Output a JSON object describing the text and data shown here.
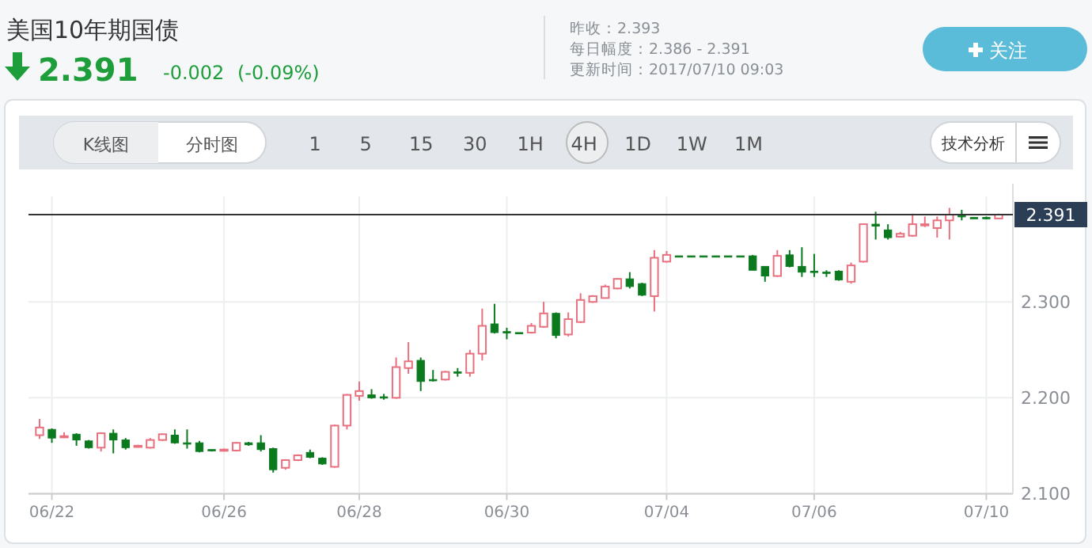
{
  "chart_data": {
    "type": "candlestick",
    "title": "美国10年期国债",
    "annotations": [
      "2.391",
      "-0.002",
      "(-0.09%)",
      "昨收：2.393",
      "每日幅度：2.386 - 2.391",
      "更新时间：2017/07/10 09:03",
      "关注",
      "K线图",
      "分时图",
      "1 5 15 30 1H 4H 1D 1W 1M",
      "技术分析"
    ],
    "categories": [
      null,
      "06/22",
      null,
      null,
      null,
      null,
      null,
      null,
      null,
      null,
      null,
      null,
      null,
      null,
      null,
      "06/26",
      null,
      null,
      null,
      null,
      null,
      null,
      null,
      null,
      null,
      null,
      "06/28",
      null,
      null,
      null,
      null,
      null,
      null,
      null,
      null,
      null,
      null,
      null,
      "06/30",
      null,
      null,
      null,
      null,
      null,
      null,
      null,
      null,
      null,
      null,
      null,
      null,
      "07/04",
      null,
      null,
      null,
      null,
      null,
      null,
      null,
      null,
      null,
      null,
      null,
      "07/06",
      null,
      null,
      null,
      null,
      null,
      null,
      null,
      null,
      null,
      null,
      null,
      null,
      null,
      "07/10",
      null
    ],
    "ohlc": [
      [
        2.161,
        2.178,
        2.157,
        2.169
      ],
      [
        2.167,
        2.168,
        2.153,
        2.158
      ],
      [
        2.159,
        2.164,
        2.158,
        2.16
      ],
      [
        2.162,
        2.163,
        2.15,
        2.156
      ],
      [
        2.155,
        2.156,
        2.147,
        2.148
      ],
      [
        2.148,
        2.164,
        2.144,
        2.163
      ],
      [
        2.163,
        2.167,
        2.142,
        2.156
      ],
      [
        2.156,
        2.158,
        2.146,
        2.148
      ],
      [
        2.149,
        2.151,
        2.148,
        2.15
      ],
      [
        2.148,
        2.158,
        2.147,
        2.156
      ],
      [
        2.156,
        2.163,
        2.155,
        2.162
      ],
      [
        2.161,
        2.167,
        2.152,
        2.153
      ],
      [
        2.153,
        2.167,
        2.147,
        2.152
      ],
      [
        2.153,
        2.155,
        2.143,
        2.144
      ],
      [
        2.146,
        2.146,
        2.144,
        2.145
      ],
      [
        2.145,
        2.147,
        2.144,
        2.146
      ],
      [
        2.145,
        2.154,
        2.144,
        2.153
      ],
      [
        2.153,
        2.154,
        2.15,
        2.151
      ],
      [
        2.153,
        2.161,
        2.144,
        2.146
      ],
      [
        2.147,
        2.148,
        2.122,
        2.125
      ],
      [
        2.127,
        2.136,
        2.125,
        2.135
      ],
      [
        2.135,
        2.141,
        2.134,
        2.14
      ],
      [
        2.143,
        2.146,
        2.137,
        2.138
      ],
      [
        2.137,
        2.138,
        2.13,
        2.131
      ],
      [
        2.128,
        2.172,
        2.127,
        2.171
      ],
      [
        2.171,
        2.204,
        2.167,
        2.203
      ],
      [
        2.202,
        2.217,
        2.197,
        2.207
      ],
      [
        2.203,
        2.209,
        2.199,
        2.2
      ],
      [
        2.201,
        2.204,
        2.198,
        2.2
      ],
      [
        2.2,
        2.242,
        2.199,
        2.232
      ],
      [
        2.231,
        2.258,
        2.225,
        2.238
      ],
      [
        2.239,
        2.242,
        2.207,
        2.217
      ],
      [
        2.219,
        2.229,
        2.217,
        2.218
      ],
      [
        2.219,
        2.228,
        2.218,
        2.227
      ],
      [
        2.227,
        2.231,
        2.222,
        2.226
      ],
      [
        2.226,
        2.25,
        2.222,
        2.246
      ],
      [
        2.246,
        2.293,
        2.239,
        2.275
      ],
      [
        2.277,
        2.298,
        2.267,
        2.268
      ],
      [
        2.269,
        2.273,
        2.261,
        2.268
      ],
      [
        2.268,
        2.268,
        2.267,
        2.267
      ],
      [
        2.268,
        2.278,
        2.267,
        2.275
      ],
      [
        2.274,
        2.3,
        2.273,
        2.288
      ],
      [
        2.288,
        2.289,
        2.262,
        2.265
      ],
      [
        2.266,
        2.289,
        2.264,
        2.282
      ],
      [
        2.279,
        2.309,
        2.278,
        2.302
      ],
      [
        2.3,
        2.307,
        2.299,
        2.306
      ],
      [
        2.304,
        2.318,
        2.304,
        2.316
      ],
      [
        2.314,
        2.325,
        2.313,
        2.324
      ],
      [
        2.324,
        2.331,
        2.314,
        2.316
      ],
      [
        2.319,
        2.32,
        2.306,
        2.307
      ],
      [
        2.306,
        2.354,
        2.29,
        2.346
      ],
      [
        2.342,
        2.353,
        2.341,
        2.349
      ],
      [
        2.348,
        2.348,
        2.348,
        2.348
      ],
      [
        2.348,
        2.348,
        2.348,
        2.348
      ],
      [
        2.348,
        2.348,
        2.348,
        2.348
      ],
      [
        2.348,
        2.348,
        2.348,
        2.348
      ],
      [
        2.348,
        2.348,
        2.348,
        2.348
      ],
      [
        2.348,
        2.348,
        2.348,
        2.348
      ],
      [
        2.348,
        2.349,
        2.333,
        2.333
      ],
      [
        2.337,
        2.337,
        2.321,
        2.327
      ],
      [
        2.327,
        2.354,
        2.326,
        2.348
      ],
      [
        2.349,
        2.354,
        2.336,
        2.337
      ],
      [
        2.337,
        2.357,
        2.326,
        2.331
      ],
      [
        2.332,
        2.35,
        2.326,
        2.331
      ],
      [
        2.331,
        2.333,
        2.326,
        2.33
      ],
      [
        2.332,
        2.333,
        2.322,
        2.323
      ],
      [
        2.321,
        2.341,
        2.319,
        2.338
      ],
      [
        2.342,
        2.381,
        2.341,
        2.381
      ],
      [
        2.381,
        2.394,
        2.365,
        2.379
      ],
      [
        2.375,
        2.381,
        2.365,
        2.367
      ],
      [
        2.368,
        2.373,
        2.367,
        2.371
      ],
      [
        2.369,
        2.392,
        2.368,
        2.381
      ],
      [
        2.38,
        2.389,
        2.378,
        2.381
      ],
      [
        2.377,
        2.389,
        2.367,
        2.385
      ],
      [
        2.385,
        2.398,
        2.365,
        2.391
      ],
      [
        2.39,
        2.396,
        2.385,
        2.389
      ],
      [
        2.388,
        2.388,
        2.387,
        2.387
      ],
      [
        2.388,
        2.389,
        2.386,
        2.387
      ],
      [
        2.387,
        2.392,
        2.387,
        2.391
      ]
    ],
    "colors": [
      "#e8707f",
      "#0b7a1f",
      "#e8707f",
      "#0b7a1f",
      "#0b7a1f",
      "#e8707f",
      "#0b7a1f",
      "#0b7a1f",
      "#e8707f",
      "#e8707f",
      "#e8707f",
      "#0b7a1f",
      "#0b7a1f",
      "#0b7a1f",
      "#0b7a1f",
      "#e8707f",
      "#e8707f",
      "#0b7a1f",
      "#0b7a1f",
      "#0b7a1f",
      "#e8707f",
      "#e8707f",
      "#0b7a1f",
      "#0b7a1f",
      "#e8707f",
      "#e8707f",
      "#e8707f",
      "#0b7a1f",
      "#0b7a1f",
      "#e8707f",
      "#e8707f",
      "#0b7a1f",
      "#0b7a1f",
      "#e8707f",
      "#0b7a1f",
      "#e8707f",
      "#e8707f",
      "#0b7a1f",
      "#0b7a1f",
      "#0b7a1f",
      "#e8707f",
      "#e8707f",
      "#0b7a1f",
      "#e8707f",
      "#e8707f",
      "#e8707f",
      "#e8707f",
      "#e8707f",
      "#0b7a1f",
      "#0b7a1f",
      "#e8707f",
      "#e8707f",
      "#0b7a1f",
      "#0b7a1f",
      "#0b7a1f",
      "#0b7a1f",
      "#0b7a1f",
      "#0b7a1f",
      "#0b7a1f",
      "#0b7a1f",
      "#e8707f",
      "#0b7a1f",
      "#0b7a1f",
      "#0b7a1f",
      "#0b7a1f",
      "#0b7a1f",
      "#e8707f",
      "#e8707f",
      "#0b7a1f",
      "#0b7a1f",
      "#e8707f",
      "#e8707f",
      "#e8707f",
      "#e8707f",
      "#e8707f",
      "#0b7a1f",
      "#0b7a1f",
      "#0b7a1f",
      "#e8707f"
    ],
    "ylim": [
      2.1,
      2.41
    ],
    "yticks": [
      {
        "value": 2.1,
        "label": "2.100"
      },
      {
        "value": 2.2,
        "label": "2.200"
      },
      {
        "value": 2.3,
        "label": "2.300"
      }
    ],
    "ref_lines": [
      {
        "axis": "y",
        "value": 2.391,
        "label": "2.391",
        "color": "#333333"
      }
    ],
    "grid": true
  }
}
